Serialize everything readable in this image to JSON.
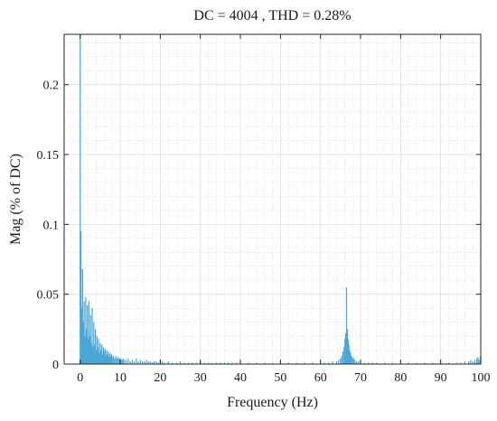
{
  "chart_data": {
    "type": "bar",
    "title": "DC = 4004 , THD = 0.28%",
    "xlabel": "Frequency (Hz)",
    "ylabel": "Mag (% of DC)",
    "xlim": [
      -4,
      100
    ],
    "ylim": [
      0,
      0.236
    ],
    "xticks": [
      0,
      10,
      20,
      30,
      40,
      50,
      60,
      70,
      80,
      90,
      100
    ],
    "xtick_labels": [
      "0",
      "10",
      "20",
      "30",
      "40",
      "50",
      "60",
      "70",
      "80",
      "90",
      "100"
    ],
    "yticks": [
      0,
      0.05,
      0.1,
      0.15,
      0.2
    ],
    "ytick_labels": [
      "0",
      "0.05",
      "0.1",
      "0.15",
      "0.2"
    ],
    "grid": true,
    "minor_grid": true,
    "series": [
      {
        "color": "#4aa6d6",
        "x": [
          0.0,
          0.2,
          0.4,
          0.6,
          0.8,
          1.0,
          1.2,
          1.4,
          1.6,
          1.8,
          2.0,
          2.2,
          2.4,
          2.6,
          2.8,
          3.0,
          3.2,
          3.4,
          3.6,
          3.8,
          4.0,
          4.2,
          4.4,
          4.6,
          4.8,
          5.0,
          5.2,
          5.4,
          5.6,
          5.8,
          6.0,
          6.2,
          6.4,
          6.6,
          6.8,
          7.0,
          7.2,
          7.4,
          7.6,
          7.8,
          8.0,
          8.3,
          8.6,
          8.9,
          9.2,
          9.5,
          9.8,
          10.1,
          10.4,
          10.7,
          11.0,
          11.5,
          12.0,
          12.5,
          13.0,
          13.5,
          14.0,
          14.5,
          15.0,
          15.5,
          16.0,
          16.5,
          17.0,
          17.5,
          18.0,
          18.5,
          19.0,
          19.5,
          20.0,
          20.5,
          21.0,
          22.0,
          23.0,
          24.0,
          25.0,
          26.0,
          27.0,
          28.0,
          29.0,
          30.0,
          31.0,
          32.0,
          33.0,
          34.0,
          35.0,
          36.0,
          37.0,
          38.0,
          39.0,
          40.0,
          42.0,
          44.0,
          46.0,
          48.0,
          50.0,
          52.0,
          54.0,
          56.0,
          58.0,
          60.0,
          61.0,
          62.0,
          63.0,
          64.0,
          64.5,
          65.0,
          65.3,
          65.6,
          65.9,
          66.1,
          66.3,
          66.5,
          66.7,
          66.9,
          67.1,
          67.3,
          67.5,
          67.7,
          68.0,
          68.3,
          68.6,
          69.0,
          69.5,
          70.0,
          71.0,
          72.0,
          73.0,
          74.0,
          76.0,
          78.0,
          80.0,
          82.0,
          84.0,
          86.0,
          88.0,
          90.0,
          92.0,
          94.0,
          95.0,
          96.0,
          97.0,
          97.5,
          98.0,
          98.5,
          99.0,
          99.3,
          99.6,
          99.9
        ],
        "values": [
          0.236,
          0.095,
          0.04,
          0.068,
          0.03,
          0.045,
          0.02,
          0.048,
          0.025,
          0.042,
          0.018,
          0.045,
          0.02,
          0.035,
          0.015,
          0.04,
          0.012,
          0.03,
          0.014,
          0.025,
          0.01,
          0.02,
          0.012,
          0.018,
          0.008,
          0.015,
          0.01,
          0.014,
          0.007,
          0.012,
          0.009,
          0.011,
          0.006,
          0.01,
          0.007,
          0.009,
          0.005,
          0.008,
          0.006,
          0.007,
          0.005,
          0.006,
          0.004,
          0.006,
          0.004,
          0.005,
          0.004,
          0.004,
          0.003,
          0.004,
          0.003,
          0.003,
          0.004,
          0.002,
          0.003,
          0.002,
          0.004,
          0.002,
          0.003,
          0.002,
          0.002,
          0.003,
          0.002,
          0.002,
          0.001,
          0.002,
          0.002,
          0.001,
          0.003,
          0.002,
          0.001,
          0.002,
          0.001,
          0.001,
          0.002,
          0.001,
          0.001,
          0.001,
          0.001,
          0.002,
          0.001,
          0.001,
          0.001,
          0.001,
          0.001,
          0.001,
          0.001,
          0.001,
          0.001,
          0.001,
          0.001,
          0.001,
          0.001,
          0.001,
          0.001,
          0.001,
          0.001,
          0.001,
          0.001,
          0.001,
          0.001,
          0.001,
          0.002,
          0.002,
          0.003,
          0.004,
          0.006,
          0.009,
          0.012,
          0.018,
          0.022,
          0.055,
          0.025,
          0.018,
          0.014,
          0.01,
          0.008,
          0.006,
          0.005,
          0.004,
          0.003,
          0.002,
          0.002,
          0.001,
          0.001,
          0.001,
          0.001,
          0.001,
          0.001,
          0.001,
          0.001,
          0.001,
          0.001,
          0.001,
          0.001,
          0.001,
          0.001,
          0.001,
          0.001,
          0.002,
          0.002,
          0.003,
          0.002,
          0.003,
          0.004,
          0.005,
          0.003,
          0.005
        ]
      }
    ]
  }
}
